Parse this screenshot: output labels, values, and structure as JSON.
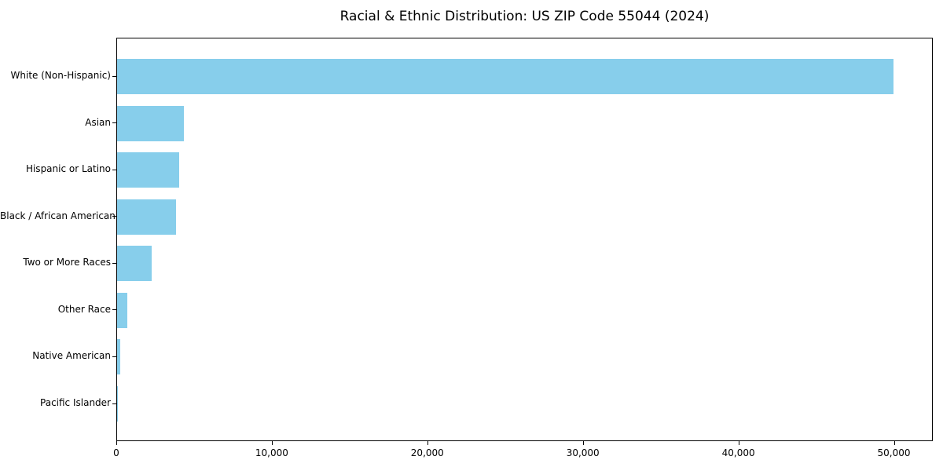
{
  "title": "Racial & Ethnic Distribution: US ZIP Code 55044 (2024)",
  "colors": {
    "bar": "#87CEEB",
    "text": "#000000",
    "spine": "#000000",
    "background": "#ffffff"
  },
  "chart_data": {
    "type": "bar",
    "orientation": "horizontal",
    "title": "Racial & Ethnic Distribution: US ZIP Code 55044 (2024)",
    "xlabel": "",
    "ylabel": "",
    "categories": [
      "White (Non-Hispanic)",
      "Asian",
      "Hispanic or Latino",
      "Black / African American",
      "Two or More Races",
      "Other Race",
      "Native American",
      "Pacific Islander"
    ],
    "values": [
      49900,
      4300,
      4000,
      3800,
      2200,
      650,
      200,
      20
    ],
    "bar_color": "#87CEEB",
    "xlim": [
      0,
      52500
    ],
    "x_ticks": [
      0,
      10000,
      20000,
      30000,
      40000,
      50000
    ],
    "x_tick_labels": [
      "0",
      "10,000",
      "20,000",
      "30,000",
      "40,000",
      "50,000"
    ],
    "grid": false,
    "legend": null
  }
}
